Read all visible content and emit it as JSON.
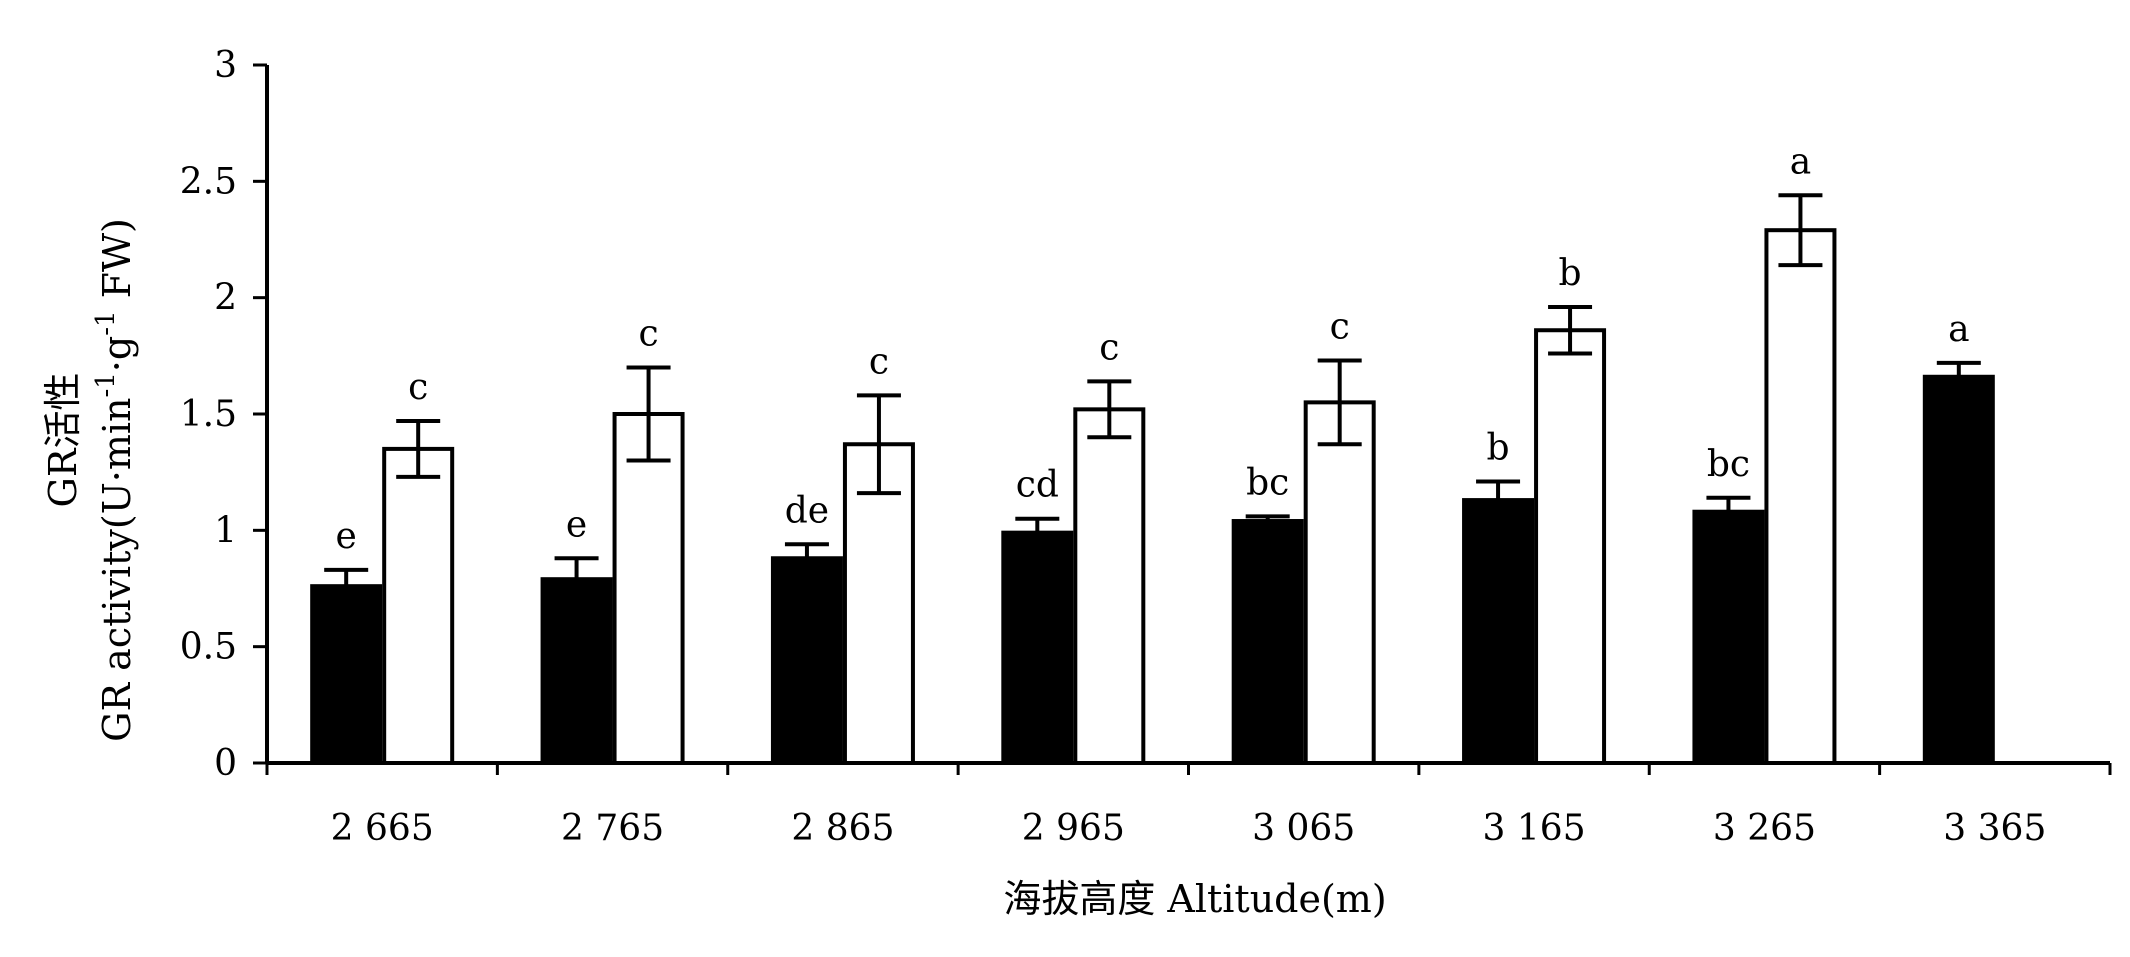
{
  "chart_data": {
    "type": "bar",
    "xlabel": "海拔高度 Altitude(m)",
    "ylabel_cn": "GR活性",
    "ylabel_en_main": "GR activity(U·min",
    "ylabel_sup1": "-1",
    "ylabel_mid": "·g",
    "ylabel_sup2": "-1",
    "ylabel_tail": " FW)",
    "ylim": [
      0,
      3
    ],
    "yticks": [
      "0",
      "0.5",
      "1",
      "1.5",
      "2",
      "2.5",
      "3"
    ],
    "ytick_values": [
      0,
      0.5,
      1,
      1.5,
      2,
      2.5,
      3
    ],
    "categories": [
      "2 665",
      "2 765",
      "2 865",
      "2 965",
      "3 065",
      "3 165",
      "3 265",
      "3 365"
    ],
    "series": [
      {
        "fill": "#000000",
        "values": [
          0.76,
          0.79,
          0.88,
          0.99,
          1.04,
          1.13,
          1.08,
          1.66
        ],
        "errors": [
          0.07,
          0.09,
          0.06,
          0.06,
          0.02,
          0.08,
          0.06,
          0.06
        ],
        "labels": [
          "e",
          "e",
          "de",
          "cd",
          "bc",
          "b",
          "bc",
          "a"
        ]
      },
      {
        "fill": "#ffffff",
        "values": [
          1.35,
          1.5,
          1.37,
          1.52,
          1.55,
          1.86,
          2.29,
          null
        ],
        "errors": [
          0.12,
          0.2,
          0.21,
          0.12,
          0.18,
          0.1,
          0.15,
          null
        ],
        "labels": [
          "c",
          "c",
          "c",
          "c",
          "c",
          "b",
          "a",
          ""
        ]
      }
    ],
    "grid": false,
    "legend": "none"
  }
}
